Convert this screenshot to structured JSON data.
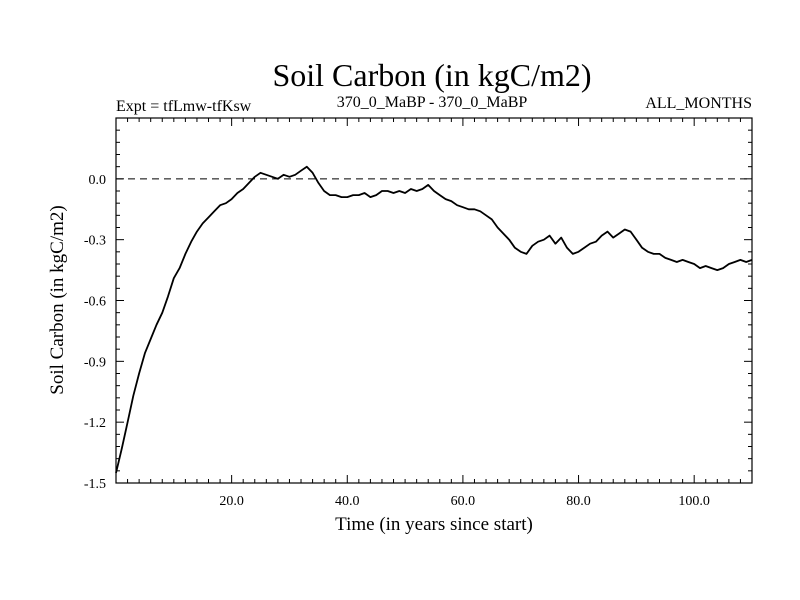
{
  "chart_data": {
    "type": "line",
    "title": "Soil Carbon (in kgC/m2)",
    "subtitle_left": "Expt = tfLmw-tfKsw",
    "subtitle_center": "370_0_MaBP - 370_0_MaBP",
    "subtitle_right": "ALL_MONTHS",
    "xlabel": "Time (in years since start)",
    "ylabel": "Soil Carbon (in kgC/m2)",
    "xlim": [
      0,
      110
    ],
    "ylim": [
      -1.5,
      0.3
    ],
    "xticks": [
      20,
      40,
      60,
      80,
      100
    ],
    "xtick_labels": [
      "20.0",
      "40.0",
      "60.0",
      "80.0",
      "100.0"
    ],
    "yticks": [
      0.0,
      -0.3,
      -0.6,
      -0.9,
      -1.2,
      -1.5
    ],
    "ytick_labels": [
      "0.0",
      "-0.3",
      "-0.6",
      "-0.9",
      "-1.2",
      "-1.5"
    ],
    "reference_line": 0.0,
    "series": [
      {
        "name": "Soil Carbon",
        "x": [
          0,
          1,
          2,
          3,
          4,
          5,
          6,
          7,
          8,
          9,
          10,
          11,
          12,
          13,
          14,
          15,
          16,
          17,
          18,
          19,
          20,
          21,
          22,
          23,
          24,
          25,
          26,
          27,
          28,
          29,
          30,
          31,
          32,
          33,
          34,
          35,
          36,
          37,
          38,
          39,
          40,
          41,
          42,
          43,
          44,
          45,
          46,
          47,
          48,
          49,
          50,
          51,
          52,
          53,
          54,
          55,
          56,
          57,
          58,
          59,
          60,
          61,
          62,
          63,
          64,
          65,
          66,
          67,
          68,
          69,
          70,
          71,
          72,
          73,
          74,
          75,
          76,
          77,
          78,
          79,
          80,
          81,
          82,
          83,
          84,
          85,
          86,
          87,
          88,
          89,
          90,
          91,
          92,
          93,
          94,
          95,
          96,
          97,
          98,
          99,
          100,
          101,
          102,
          103,
          104,
          105,
          106,
          107,
          108,
          109,
          110
        ],
        "values": [
          -1.45,
          -1.33,
          -1.2,
          -1.07,
          -0.96,
          -0.86,
          -0.79,
          -0.72,
          -0.66,
          -0.58,
          -0.49,
          -0.44,
          -0.37,
          -0.31,
          -0.26,
          -0.22,
          -0.19,
          -0.16,
          -0.13,
          -0.12,
          -0.1,
          -0.07,
          -0.05,
          -0.02,
          0.01,
          0.03,
          0.02,
          0.01,
          0.0,
          0.02,
          0.01,
          0.02,
          0.04,
          0.06,
          0.03,
          -0.02,
          -0.06,
          -0.08,
          -0.08,
          -0.09,
          -0.09,
          -0.08,
          -0.08,
          -0.07,
          -0.09,
          -0.08,
          -0.06,
          -0.06,
          -0.07,
          -0.06,
          -0.07,
          -0.05,
          -0.06,
          -0.05,
          -0.03,
          -0.06,
          -0.08,
          -0.1,
          -0.11,
          -0.13,
          -0.14,
          -0.15,
          -0.15,
          -0.16,
          -0.18,
          -0.2,
          -0.24,
          -0.27,
          -0.3,
          -0.34,
          -0.36,
          -0.37,
          -0.33,
          -0.31,
          -0.3,
          -0.28,
          -0.32,
          -0.29,
          -0.34,
          -0.37,
          -0.36,
          -0.34,
          -0.32,
          -0.31,
          -0.28,
          -0.26,
          -0.29,
          -0.27,
          -0.25,
          -0.26,
          -0.3,
          -0.34,
          -0.36,
          -0.37,
          -0.37,
          -0.39,
          -0.4,
          -0.41,
          -0.4,
          -0.41,
          -0.42,
          -0.44,
          -0.43,
          -0.44,
          -0.45,
          -0.44,
          -0.42,
          -0.41,
          -0.4,
          -0.41,
          -0.4
        ]
      }
    ]
  }
}
